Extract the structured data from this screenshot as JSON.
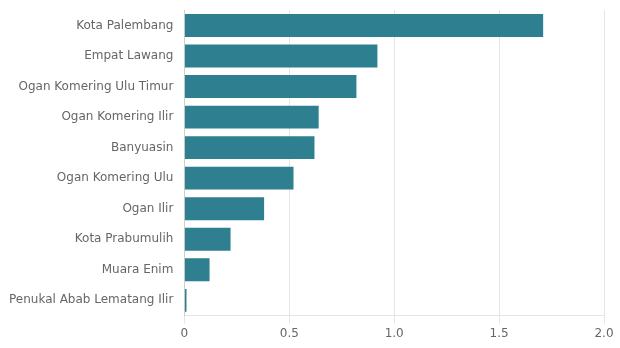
{
  "chart_data": {
    "type": "bar",
    "orientation": "horizontal",
    "categories": [
      "Penukal Abab Lematang Ilir",
      "Muara Enim",
      "Kota Prabumulih",
      "Ogan Ilir",
      "Ogan Komering Ulu",
      "Banyuasin",
      "Ogan Komering Ilir",
      "Ogan Komering Ulu Timur",
      "Empat Lawang",
      "Kota Palembang"
    ],
    "values": [
      0.01,
      0.12,
      0.22,
      0.38,
      0.52,
      0.62,
      0.64,
      0.82,
      0.92,
      1.71
    ],
    "color": "#2e7f8f",
    "xlim": [
      0,
      2.0
    ],
    "xticks": [
      0,
      0.5,
      {
        "value": 1,
        "label": "1.0"
      },
      1.5,
      {
        "value": 2,
        "label": "2.0"
      }
    ],
    "grid": true
  }
}
